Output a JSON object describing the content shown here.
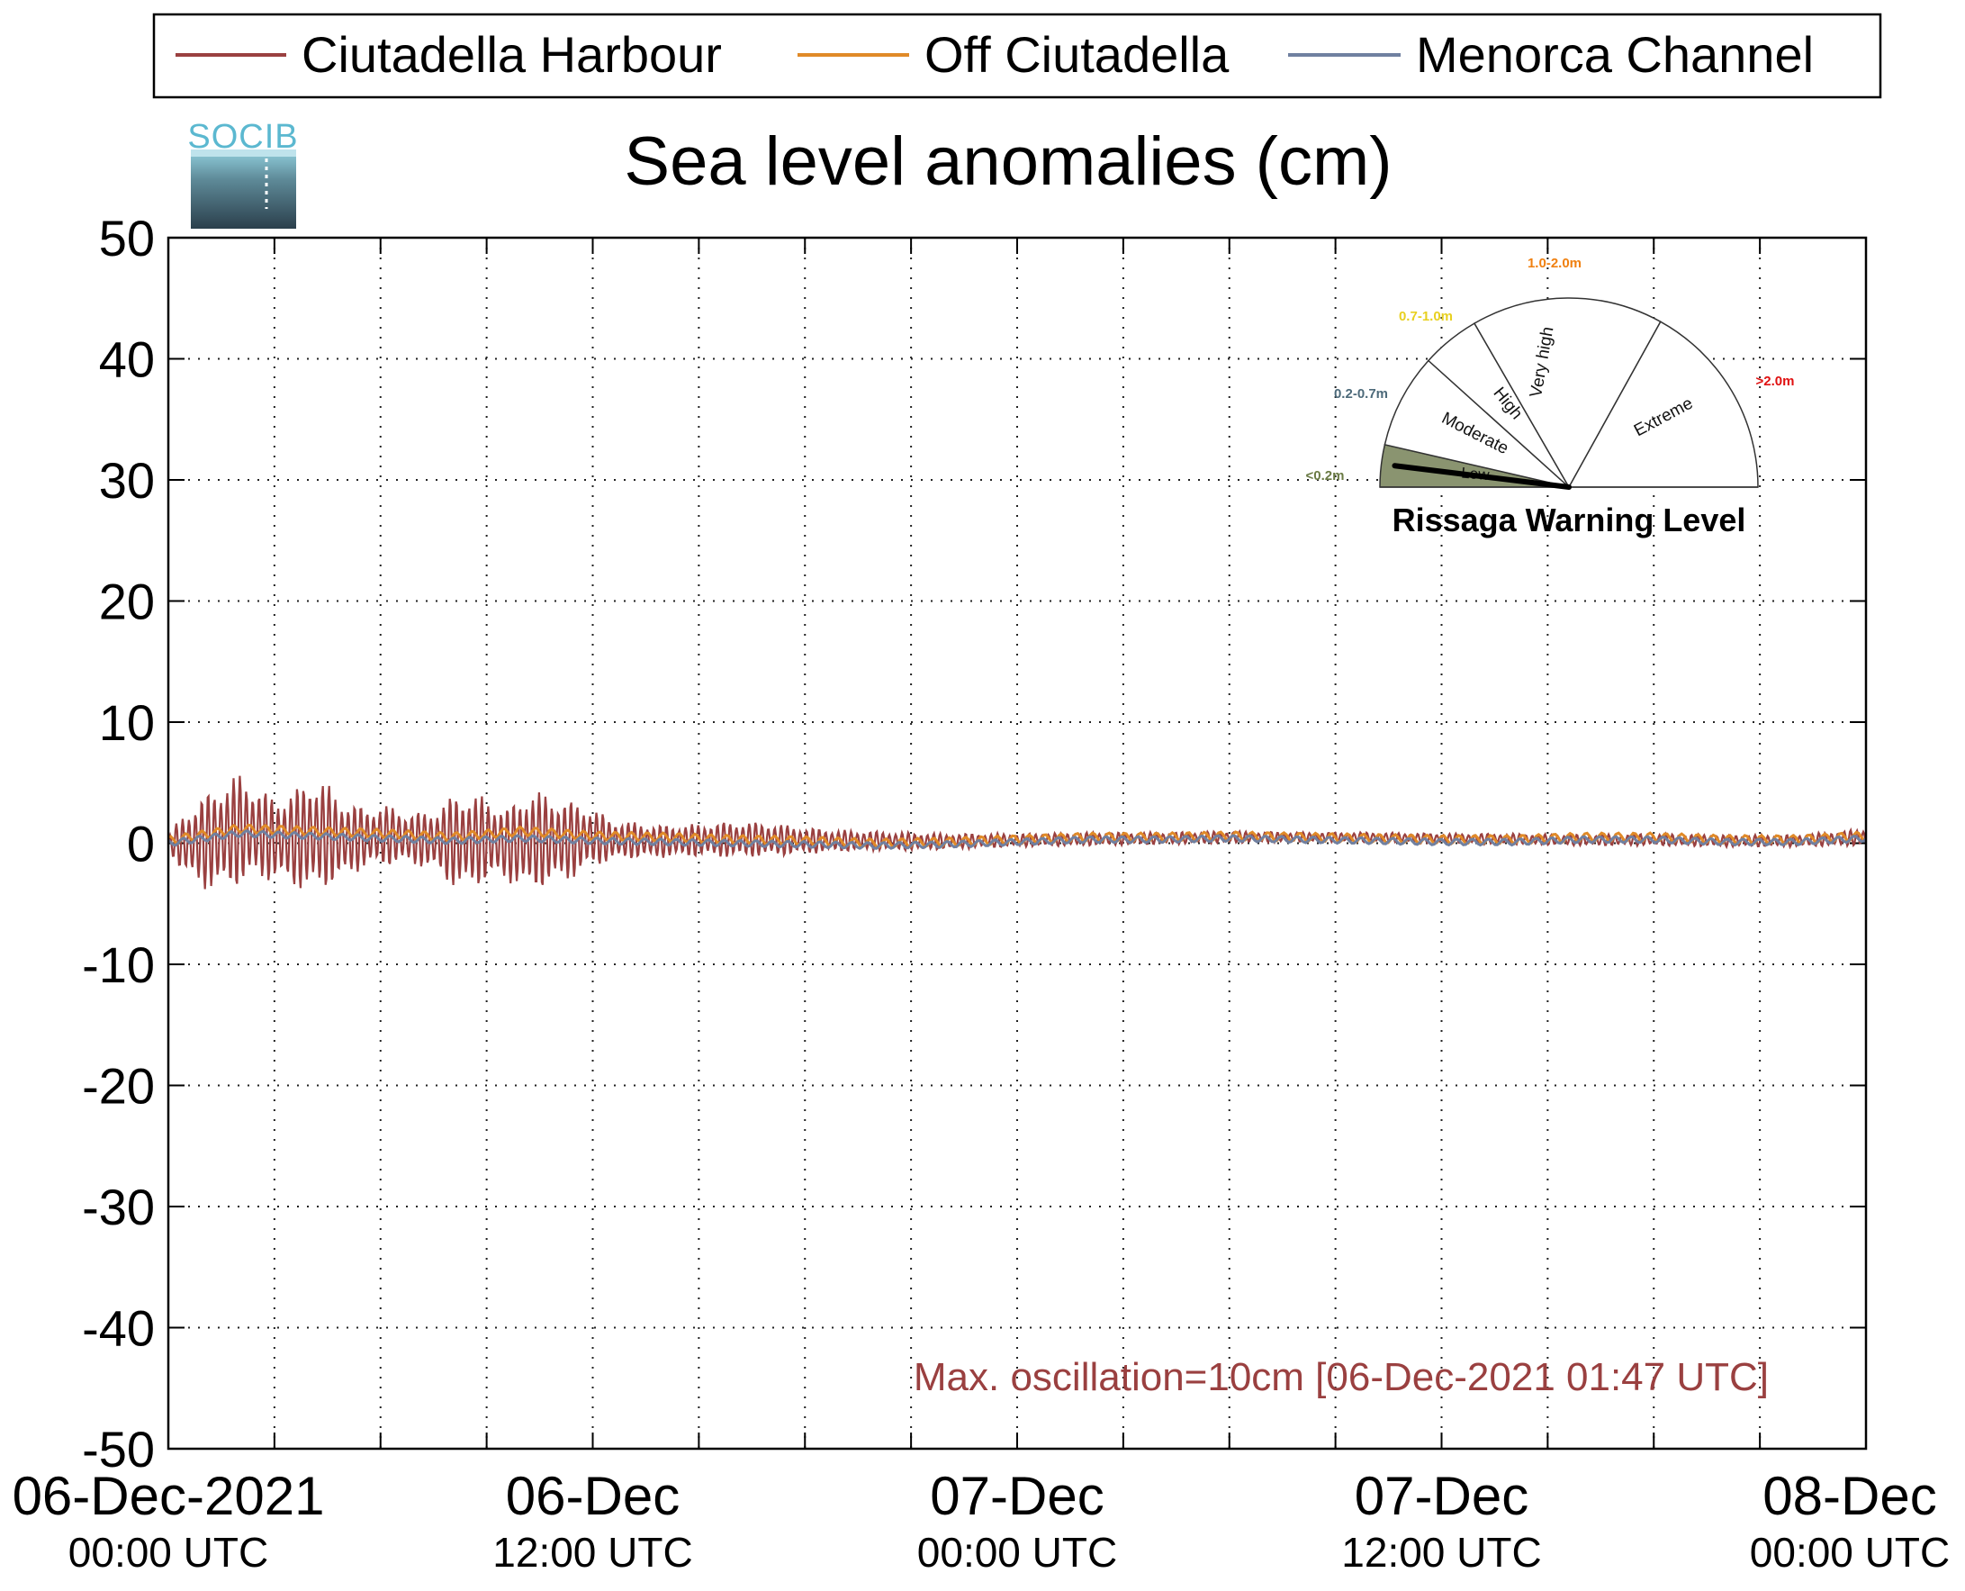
{
  "chart_data": {
    "type": "line",
    "title": "Sea level anomalies (cm)",
    "logo_text": "SOCIB",
    "xlabel": "",
    "ylabel": "",
    "ylim": [
      -50,
      50
    ],
    "yticks": [
      50,
      40,
      30,
      20,
      10,
      0,
      -10,
      -20,
      -30,
      -40,
      -50
    ],
    "xlim_hours": [
      0,
      48
    ],
    "grid": true,
    "legend_position": "top, outside plot",
    "x_tick_labels": [
      {
        "hours": 0,
        "line1": "06-Dec-2021",
        "line2": "00:00 UTC"
      },
      {
        "hours": 12,
        "line1": "06-Dec",
        "line2": "12:00 UTC"
      },
      {
        "hours": 24,
        "line1": "07-Dec",
        "line2": "00:00 UTC"
      },
      {
        "hours": 36,
        "line1": "07-Dec",
        "line2": "12:00 UTC"
      },
      {
        "hours": 48,
        "line1": "08-Dec",
        "line2": "00:00 UTC"
      }
    ],
    "minor_x_ticks_hours": [
      3,
      6,
      9,
      15,
      18,
      21,
      27,
      30,
      33,
      39,
      42,
      45
    ],
    "series": [
      {
        "name": "Ciutadella Harbour",
        "color": "#9a4040",
        "oscillation_envelope": {
          "hours": [
            0,
            0.3,
            0.6,
            1.0,
            1.5,
            2.0,
            2.5,
            3.0,
            3.6,
            4.0,
            4.4,
            4.8,
            5.2,
            5.6,
            6.0,
            6.4,
            6.8,
            7.2,
            7.6,
            8.2,
            8.8,
            9.2,
            9.6,
            10.2,
            10.8,
            11.4,
            12.0,
            12.5,
            13.0,
            14.0,
            15.0,
            16.0,
            17.0,
            18.0,
            19.0,
            20.0,
            21.0,
            22.0,
            23.0,
            24.0,
            26.0,
            28.0,
            30.0,
            32.0,
            34.0,
            36.0,
            38.0,
            40.0,
            42.0,
            44.0,
            46.0,
            48.0
          ],
          "upper": [
            0.5,
            2.0,
            3.0,
            4.0,
            5.0,
            5.8,
            4.8,
            3.8,
            4.5,
            5.5,
            5.2,
            4.0,
            3.3,
            3.0,
            3.2,
            3.0,
            2.6,
            2.6,
            3.0,
            4.3,
            4.0,
            3.5,
            3.0,
            4.5,
            4.0,
            3.5,
            3.0,
            2.0,
            1.8,
            1.5,
            1.6,
            1.8,
            1.7,
            1.3,
            1.1,
            1.0,
            0.9,
            0.8,
            0.8,
            0.8,
            0.9,
            0.9,
            1.0,
            0.9,
            0.9,
            0.8,
            0.8,
            0.7,
            0.8,
            0.7,
            0.7,
            1.2
          ],
          "lower": [
            -0.5,
            -2.0,
            -3.0,
            -3.8,
            -4.0,
            -3.6,
            -3.0,
            -3.2,
            -3.7,
            -4.2,
            -3.8,
            -3.3,
            -2.6,
            -2.0,
            -2.0,
            -1.8,
            -1.8,
            -2.0,
            -2.5,
            -4.0,
            -3.5,
            -3.0,
            -3.2,
            -4.1,
            -3.5,
            -3.0,
            -2.0,
            -1.5,
            -1.3,
            -1.2,
            -1.1,
            -1.2,
            -1.1,
            -0.9,
            -0.7,
            -0.6,
            -0.6,
            -0.5,
            -0.4,
            -0.3,
            -0.2,
            -0.1,
            0.0,
            0.1,
            0.1,
            0.0,
            -0.1,
            -0.2,
            -0.2,
            -0.3,
            -0.3,
            -0.2
          ]
        }
      },
      {
        "name": "Off Ciutadella",
        "color": "#e08a28",
        "x_hours": [
          0,
          2,
          4,
          6,
          8,
          10,
          12,
          14,
          16,
          18,
          20,
          22,
          24,
          26,
          28,
          30,
          32,
          34,
          36,
          38,
          40,
          42,
          44,
          46,
          48
        ],
        "values": [
          0.2,
          1.2,
          1.0,
          0.8,
          0.5,
          1.0,
          0.6,
          0.5,
          0.3,
          0.2,
          0.0,
          0.1,
          0.3,
          0.5,
          0.5,
          0.6,
          0.5,
          0.4,
          0.3,
          0.3,
          0.5,
          0.5,
          0.3,
          0.3,
          0.6
        ]
      },
      {
        "name": "Menorca Channel",
        "color": "#7080a0",
        "x_hours": [
          0,
          2,
          4,
          6,
          8,
          10,
          12,
          14,
          16,
          18,
          20,
          22,
          24,
          26,
          28,
          30,
          32,
          34,
          36,
          38,
          40,
          42,
          44,
          46,
          48
        ],
        "values": [
          0.0,
          0.8,
          0.6,
          0.4,
          0.2,
          0.4,
          0.2,
          0.1,
          0.0,
          -0.1,
          -0.2,
          -0.1,
          0.1,
          0.3,
          0.3,
          0.4,
          0.3,
          0.2,
          0.1,
          0.1,
          0.3,
          0.3,
          0.1,
          0.1,
          0.4
        ]
      }
    ],
    "annotation": {
      "text": "Max. oscillation=10cm [06-Dec-2021 01:47 UTC]",
      "color": "#9a4040",
      "position": "bottom-right inside plot"
    },
    "inset": {
      "type": "gauge",
      "caption": "Rissaga Warning Level",
      "current_level": "Low",
      "needle_value_m": 0.1,
      "sectors": [
        {
          "name": "Low",
          "range_label": "<0.2m",
          "label_color": "#6a7a44",
          "fill": "#8a9470",
          "active": true
        },
        {
          "name": "Moderate",
          "range_label": "0.2-0.7m",
          "label_color": "#4d6a7a",
          "fill": "#ffffff",
          "active": false
        },
        {
          "name": "High",
          "range_label": "0.7-1.0m",
          "label_color": "#e8d020",
          "fill": "#ffffff",
          "active": false
        },
        {
          "name": "Very high",
          "range_label": "1.0-2.0m",
          "label_color": "#f08010",
          "fill": "#ffffff",
          "active": false
        },
        {
          "name": "Extreme",
          "range_label": ">2.0m",
          "label_color": "#e01010",
          "fill": "#ffffff",
          "active": false
        }
      ]
    }
  }
}
